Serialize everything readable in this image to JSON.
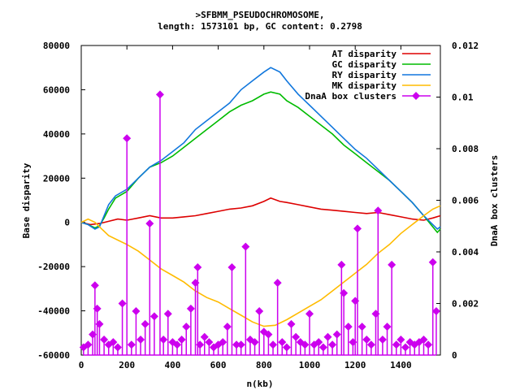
{
  "chart_data": {
    "type": "line",
    "title_line1": ">SFBMM_PSEUDOCHROMOSOME,",
    "title_line2": "length: 1573101 bp, GC content: 0.2798",
    "xlabel": "n(kb)",
    "ylabel": "Base disparity",
    "y2label": "DnaA box clusters",
    "xlim": [
      0,
      1573
    ],
    "ylim": [
      -60000,
      80000
    ],
    "y2lim": [
      0,
      0.012
    ],
    "x_ticks": [
      0,
      200,
      400,
      600,
      800,
      1000,
      1200,
      1400
    ],
    "y_ticks": [
      -60000,
      -40000,
      -20000,
      0,
      20000,
      40000,
      60000,
      80000
    ],
    "y2_ticks": [
      "0",
      "0.002",
      "0.004",
      "0.006",
      "0.008",
      "0.01",
      "0.012"
    ],
    "y2_tick_values": [
      0,
      0.002,
      0.004,
      0.006,
      0.008,
      0.01,
      0.012
    ],
    "legend_position": "top-right",
    "series": [
      {
        "name": "AT disparity",
        "color": "#dd0000",
        "x": [
          0,
          40,
          80,
          120,
          160,
          200,
          250,
          300,
          350,
          400,
          450,
          500,
          550,
          600,
          650,
          700,
          750,
          800,
          830,
          870,
          900,
          950,
          1000,
          1050,
          1100,
          1150,
          1200,
          1250,
          1300,
          1350,
          1400,
          1450,
          1500,
          1540,
          1573
        ],
        "values": [
          0,
          -1000,
          -500,
          500,
          1500,
          1000,
          2000,
          3000,
          2000,
          2000,
          2500,
          3000,
          4000,
          5000,
          6000,
          6500,
          7500,
          9500,
          11000,
          9500,
          9000,
          8000,
          7000,
          6000,
          5500,
          5000,
          4500,
          4000,
          4500,
          3500,
          2500,
          1500,
          1000,
          2000,
          3000
        ]
      },
      {
        "name": "GC disparity",
        "color": "#00bb00",
        "x": [
          0,
          30,
          60,
          80,
          100,
          120,
          150,
          200,
          250,
          300,
          350,
          400,
          450,
          500,
          550,
          600,
          650,
          700,
          750,
          800,
          830,
          870,
          900,
          950,
          1000,
          1050,
          1100,
          1150,
          1200,
          1250,
          1300,
          1350,
          1400,
          1450,
          1500,
          1540,
          1560,
          1573
        ],
        "values": [
          0,
          -1000,
          -2500,
          -1500,
          2000,
          6000,
          11000,
          14000,
          20000,
          25000,
          27000,
          30000,
          34000,
          38000,
          42000,
          46000,
          50000,
          53000,
          55000,
          58000,
          59000,
          58000,
          55000,
          52000,
          48000,
          44000,
          40000,
          35000,
          31000,
          27000,
          23000,
          19000,
          14000,
          9000,
          3000,
          -2000,
          -4500,
          -3000
        ]
      },
      {
        "name": "RY disparity",
        "color": "#1177dd",
        "x": [
          0,
          30,
          60,
          80,
          100,
          120,
          150,
          200,
          250,
          300,
          350,
          400,
          450,
          500,
          550,
          600,
          650,
          700,
          750,
          800,
          830,
          870,
          900,
          950,
          1000,
          1050,
          1100,
          1150,
          1200,
          1250,
          1300,
          1350,
          1400,
          1450,
          1500,
          1540,
          1560,
          1573
        ],
        "values": [
          0,
          -1000,
          -3000,
          -2000,
          3000,
          8000,
          12000,
          15000,
          20000,
          25000,
          28000,
          32000,
          36000,
          42000,
          46000,
          50000,
          54000,
          60000,
          64000,
          68000,
          70000,
          68000,
          64000,
          58000,
          53000,
          48000,
          43000,
          38000,
          33000,
          29000,
          24000,
          19000,
          14000,
          9000,
          3000,
          -1000,
          -3000,
          -2000
        ]
      },
      {
        "name": "MK disparity",
        "color": "#ffbb00",
        "x": [
          0,
          30,
          60,
          90,
          120,
          160,
          200,
          250,
          300,
          350,
          400,
          450,
          500,
          550,
          600,
          650,
          700,
          750,
          800,
          850,
          900,
          950,
          1000,
          1050,
          1100,
          1150,
          1200,
          1250,
          1300,
          1350,
          1400,
          1450,
          1500,
          1540,
          1573
        ],
        "values": [
          0,
          1500,
          0,
          -3000,
          -6000,
          -8000,
          -10000,
          -13000,
          -17000,
          -21000,
          -24000,
          -27000,
          -31000,
          -34000,
          -36000,
          -39000,
          -42000,
          -45000,
          -47000,
          -46500,
          -44000,
          -41000,
          -38000,
          -35000,
          -31000,
          -27000,
          -23000,
          -19000,
          -14000,
          -10000,
          -5000,
          -1000,
          3000,
          6000,
          7500
        ]
      }
    ],
    "dnaa_series": {
      "name": "DnaA box clusters",
      "color": "#cc00ee",
      "x": [
        10,
        30,
        50,
        60,
        70,
        80,
        100,
        120,
        140,
        160,
        180,
        200,
        220,
        240,
        260,
        280,
        300,
        320,
        345,
        360,
        380,
        400,
        420,
        440,
        460,
        480,
        500,
        510,
        520,
        540,
        560,
        580,
        600,
        620,
        640,
        660,
        680,
        700,
        720,
        740,
        760,
        780,
        800,
        820,
        840,
        860,
        880,
        900,
        920,
        940,
        960,
        980,
        1000,
        1020,
        1040,
        1060,
        1080,
        1100,
        1120,
        1140,
        1150,
        1170,
        1190,
        1200,
        1210,
        1230,
        1250,
        1270,
        1290,
        1300,
        1320,
        1340,
        1360,
        1380,
        1400,
        1420,
        1440,
        1460,
        1480,
        1500,
        1520,
        1540,
        1555
      ],
      "values": [
        0.0003,
        0.0004,
        0.0008,
        0.0027,
        0.0018,
        0.0012,
        0.0006,
        0.0004,
        0.0005,
        0.0003,
        0.002,
        0.0084,
        0.0004,
        0.0017,
        0.0006,
        0.0012,
        0.0051,
        0.0015,
        0.0101,
        0.0006,
        0.0016,
        0.0005,
        0.0004,
        0.0006,
        0.0011,
        0.0018,
        0.0028,
        0.0034,
        0.0004,
        0.0007,
        0.0005,
        0.0003,
        0.0004,
        0.0005,
        0.0011,
        0.0034,
        0.0004,
        0.0004,
        0.0042,
        0.0006,
        0.0005,
        0.0017,
        0.0009,
        0.0008,
        0.0004,
        0.0028,
        0.0005,
        0.0003,
        0.0012,
        0.0007,
        0.0005,
        0.0004,
        0.0016,
        0.0004,
        0.0005,
        0.0003,
        0.0007,
        0.0004,
        0.0008,
        0.0035,
        0.0024,
        0.0011,
        0.0005,
        0.0021,
        0.0049,
        0.0011,
        0.0006,
        0.0004,
        0.0016,
        0.0056,
        0.0006,
        0.0011,
        0.0035,
        0.0004,
        0.0006,
        0.0003,
        0.0005,
        0.0004,
        0.0005,
        0.0006,
        0.0004,
        0.0036,
        0.0017
      ]
    }
  }
}
